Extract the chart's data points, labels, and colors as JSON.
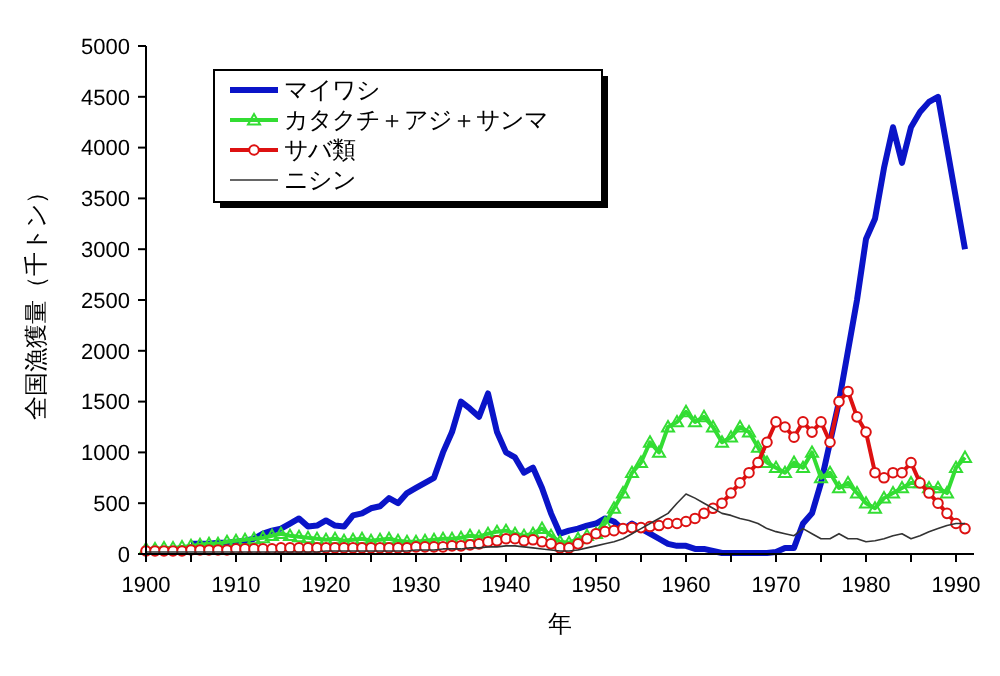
{
  "chart_data": {
    "type": "line",
    "xlabel": "年",
    "ylabel": "全国漁獲量（千トン）",
    "xlim": [
      1900,
      1992
    ],
    "ylim": [
      0,
      5000
    ],
    "xticks": [
      1900,
      {
        "value": 1905,
        "label": null
      },
      1910,
      {
        "value": 1915,
        "label": null
      },
      1920,
      {
        "value": 1925,
        "label": null
      },
      1930,
      {
        "value": 1935,
        "label": null
      },
      1940,
      {
        "value": 1945,
        "label": null
      },
      1950,
      {
        "value": 1955,
        "label": null
      },
      1960,
      {
        "value": 1965,
        "label": null
      },
      1970,
      {
        "value": 1975,
        "label": null
      },
      1980,
      {
        "value": 1985,
        "label": null
      },
      1990
    ],
    "yticks": [
      0,
      500,
      1000,
      1500,
      2000,
      2500,
      3000,
      3500,
      4000,
      4500,
      5000
    ],
    "grid": false,
    "legend": "top left",
    "line_style": "solid",
    "x": [
      1900,
      1901,
      1902,
      1903,
      1904,
      1905,
      1906,
      1907,
      1908,
      1909,
      1910,
      1911,
      1912,
      1913,
      1914,
      1915,
      1916,
      1917,
      1918,
      1919,
      1920,
      1921,
      1922,
      1923,
      1924,
      1925,
      1926,
      1927,
      1928,
      1929,
      1930,
      1931,
      1932,
      1933,
      1934,
      1935,
      1936,
      1937,
      1938,
      1939,
      1940,
      1941,
      1942,
      1943,
      1944,
      1945,
      1946,
      1947,
      1948,
      1949,
      1950,
      1951,
      1952,
      1953,
      1954,
      1955,
      1956,
      1957,
      1958,
      1959,
      1960,
      1961,
      1962,
      1963,
      1964,
      1965,
      1966,
      1967,
      1968,
      1969,
      1970,
      1971,
      1972,
      1973,
      1974,
      1975,
      1976,
      1977,
      1978,
      1979,
      1980,
      1981,
      1982,
      1983,
      1984,
      1985,
      1986,
      1987,
      1988,
      1989,
      1990,
      1991
    ],
    "series": [
      {
        "name": "マイワシ",
        "color": "#0a14c8",
        "marker": "none",
        "x": [
          1905,
          1906,
          1907,
          1908,
          1909,
          1910,
          1911,
          1912,
          1913,
          1914,
          1915,
          1916,
          1917,
          1918,
          1919,
          1920,
          1921,
          1922,
          1923,
          1924,
          1925,
          1926,
          1927,
          1928,
          1929,
          1930,
          1931,
          1932,
          1933,
          1934,
          1935,
          1936,
          1937,
          1938,
          1939,
          1940,
          1941,
          1942,
          1943,
          1944,
          1945,
          1946,
          1947,
          1948,
          1949,
          1950,
          1951,
          1952,
          1953,
          1954,
          1955,
          1956,
          1957,
          1958,
          1959,
          1960,
          1961,
          1962,
          1963,
          1964,
          1965,
          1966,
          1967,
          1968,
          1969,
          1970,
          1971,
          1972,
          1973,
          1974,
          1975,
          1976,
          1977,
          1978,
          1979,
          1980,
          1981,
          1982,
          1983,
          1984,
          1985,
          1986,
          1987,
          1988,
          1989,
          1990,
          1991
        ],
        "values": [
          100,
          100,
          100,
          110,
          110,
          120,
          130,
          150,
          200,
          230,
          250,
          300,
          350,
          270,
          280,
          330,
          280,
          270,
          380,
          400,
          450,
          470,
          550,
          500,
          600,
          650,
          700,
          750,
          1000,
          1200,
          1500,
          1430,
          1350,
          1580,
          1200,
          1000,
          950,
          800,
          850,
          650,
          400,
          200,
          230,
          250,
          280,
          300,
          350,
          320,
          240,
          300,
          250,
          200,
          150,
          100,
          80,
          80,
          50,
          50,
          30,
          10,
          10,
          10,
          10,
          10,
          10,
          20,
          60,
          60,
          300,
          400,
          700,
          1100,
          1500,
          2000,
          2500,
          3100,
          3300,
          3800,
          4200,
          3850,
          4200,
          4350,
          4450,
          4500,
          4000,
          3500,
          3000
        ]
      },
      {
        "name": "カタクチ＋アジ＋サンマ",
        "color": "#33dd33",
        "marker": "triangle",
        "values": [
          50,
          50,
          60,
          60,
          70,
          80,
          90,
          100,
          100,
          120,
          130,
          140,
          150,
          160,
          180,
          200,
          180,
          170,
          160,
          150,
          140,
          150,
          130,
          140,
          150,
          130,
          140,
          150,
          130,
          120,
          120,
          130,
          140,
          150,
          150,
          160,
          180,
          170,
          200,
          220,
          230,
          200,
          180,
          200,
          250,
          180,
          120,
          110,
          150,
          180,
          200,
          300,
          450,
          600,
          800,
          900,
          1100,
          1000,
          1250,
          1300,
          1400,
          1300,
          1350,
          1250,
          1100,
          1150,
          1250,
          1200,
          1050,
          900,
          850,
          800,
          900,
          850,
          1000,
          750,
          800,
          650,
          700,
          600,
          500,
          450,
          550,
          600,
          650,
          700,
          700,
          650,
          650,
          600,
          850,
          950
        ]
      },
      {
        "name": "サバ類",
        "color": "#dd1111",
        "marker": "circle",
        "values": [
          30,
          30,
          30,
          30,
          30,
          40,
          40,
          40,
          40,
          40,
          50,
          50,
          50,
          50,
          50,
          60,
          60,
          60,
          60,
          60,
          60,
          60,
          60,
          60,
          60,
          60,
          60,
          60,
          60,
          60,
          70,
          70,
          70,
          70,
          80,
          80,
          90,
          100,
          120,
          130,
          150,
          150,
          130,
          140,
          120,
          100,
          60,
          60,
          100,
          150,
          200,
          220,
          230,
          250,
          260,
          260,
          270,
          280,
          300,
          300,
          320,
          350,
          400,
          450,
          500,
          600,
          700,
          800,
          900,
          1100,
          1300,
          1250,
          1150,
          1300,
          1200,
          1300,
          1100,
          1500,
          1600,
          1350,
          1200,
          800,
          750,
          800,
          800,
          900,
          700,
          600,
          500,
          400,
          300,
          250
        ]
      },
      {
        "name": "ニシン",
        "color": "#333333",
        "marker": "none",
        "values": [
          20,
          20,
          20,
          20,
          20,
          20,
          20,
          20,
          20,
          20,
          20,
          20,
          20,
          20,
          20,
          20,
          20,
          20,
          20,
          20,
          30,
          30,
          30,
          30,
          30,
          30,
          30,
          30,
          30,
          30,
          40,
          40,
          40,
          50,
          50,
          50,
          60,
          60,
          70,
          70,
          80,
          80,
          70,
          60,
          50,
          40,
          30,
          30,
          40,
          60,
          80,
          100,
          120,
          150,
          200,
          250,
          300,
          350,
          400,
          500,
          590,
          550,
          500,
          450,
          400,
          380,
          350,
          330,
          300,
          250,
          220,
          200,
          180,
          250,
          200,
          150,
          150,
          200,
          150,
          150,
          120,
          130,
          150,
          180,
          200,
          150,
          180,
          220,
          250,
          280,
          300,
          300
        ]
      }
    ]
  }
}
